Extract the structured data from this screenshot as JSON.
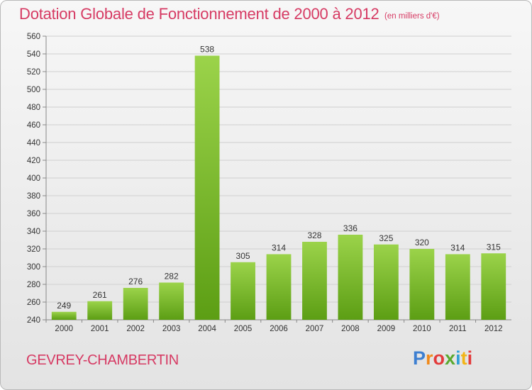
{
  "header": {
    "title": "Dotation Globale de Fonctionnement de 2000 à 2012",
    "unit": "(en milliers d'€)"
  },
  "footer": {
    "commune": "GEVREY-CHAMBERTIN",
    "brand": "Proxiti"
  },
  "colors": {
    "title": "#d63a63",
    "bar_light": "#9bd34a",
    "bar_dark": "#5c9e14",
    "grid": "#cfcfcf"
  },
  "chart_data": {
    "type": "bar",
    "title": "Dotation Globale de Fonctionnement de 2000 à 2012",
    "subtitle": "(en milliers d'€)",
    "xlabel": "",
    "ylabel": "",
    "categories": [
      "2000",
      "2001",
      "2002",
      "2003",
      "2004",
      "2005",
      "2006",
      "2007",
      "2008",
      "2009",
      "2010",
      "2011",
      "2012"
    ],
    "values": [
      249,
      261,
      276,
      282,
      538,
      305,
      314,
      328,
      336,
      325,
      320,
      314,
      315
    ],
    "ylim": [
      240,
      560
    ],
    "yticks": [
      240,
      260,
      280,
      300,
      320,
      340,
      360,
      380,
      400,
      420,
      440,
      460,
      480,
      500,
      520,
      540,
      560
    ],
    "grid": true,
    "legend": "none",
    "data_labels": true
  }
}
